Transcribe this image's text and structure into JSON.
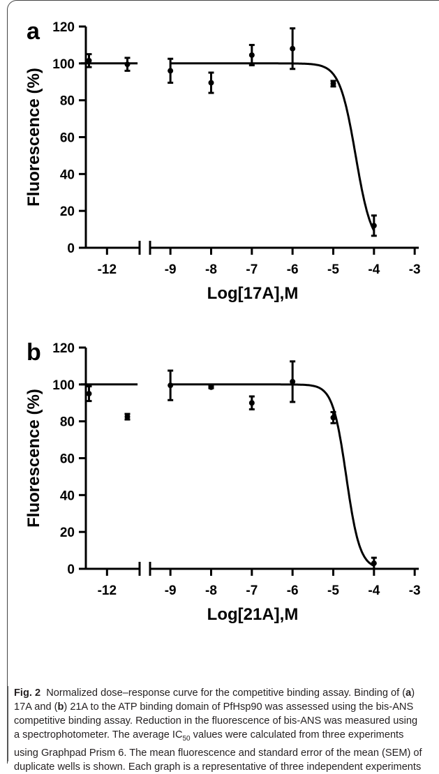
{
  "chart_data": [
    {
      "type": "scatter",
      "panel_label": "a",
      "xlabel": "Log[17A],M",
      "ylabel": "Fluorescence (%)",
      "xlim": [
        -12.6,
        -2.9
      ],
      "ylim": [
        0,
        120
      ],
      "x_axis_break": [
        -11.2,
        -9.5
      ],
      "xticks": [
        -12,
        -9,
        -8,
        -7,
        -6,
        -5,
        -4,
        -3
      ],
      "yticks": [
        0,
        20,
        40,
        60,
        80,
        100,
        120
      ],
      "fit_curve": {
        "top": 100,
        "bottom": 0,
        "log_ic50": -4.45,
        "hill_slope": -2.2
      },
      "points": [
        {
          "x": -11.5,
          "y": 99.5,
          "err": 3.5
        },
        {
          "x": -11.0,
          "y": 101.5,
          "err": 3.5
        },
        {
          "x": -9.0,
          "y": 96,
          "err": 6.5
        },
        {
          "x": -8.0,
          "y": 89.5,
          "err": 5.5
        },
        {
          "x": -7.0,
          "y": 104.5,
          "err": 5.5
        },
        {
          "x": -6.0,
          "y": 108,
          "err": 11
        },
        {
          "x": -5.0,
          "y": 89,
          "err": 1.5
        },
        {
          "x": -4.0,
          "y": 12,
          "err": 5.5
        }
      ]
    },
    {
      "type": "scatter",
      "panel_label": "b",
      "xlabel": "Log[21A],M",
      "ylabel": "Fluorescence (%)",
      "xlim": [
        -12.6,
        -2.9
      ],
      "ylim": [
        0,
        120
      ],
      "x_axis_break": [
        -11.2,
        -9.5
      ],
      "xticks": [
        -12,
        -9,
        -8,
        -7,
        -6,
        -5,
        -4,
        -3
      ],
      "yticks": [
        0,
        20,
        40,
        60,
        80,
        100,
        120
      ],
      "fit_curve": {
        "top": 100,
        "bottom": 0,
        "log_ic50": -4.68,
        "hill_slope": -2.6
      },
      "points": [
        {
          "x": -11.5,
          "y": 82.5,
          "err": 1.5
        },
        {
          "x": -11.0,
          "y": 95,
          "err": 4
        },
        {
          "x": -9.0,
          "y": 99.5,
          "err": 8
        },
        {
          "x": -8.0,
          "y": 98.5,
          "err": 0.5
        },
        {
          "x": -7.0,
          "y": 90,
          "err": 3.5
        },
        {
          "x": -6.0,
          "y": 101.5,
          "err": 11
        },
        {
          "x": -5.0,
          "y": 82,
          "err": 3
        },
        {
          "x": -4.0,
          "y": 3,
          "err": 3
        }
      ]
    }
  ],
  "caption": {
    "fig_label": "Fig. 2",
    "title": "Normalized dose–response curve for the competitive binding assay.",
    "text_1": "Binding of (",
    "a": "a",
    "text_2": ") 17A and (",
    "b": "b",
    "text_3": ") 21A to the ATP binding domain of PfHsp90 was assessed using the bis-ANS competitive binding assay. Reduction in the fluorescence of bis-ANS was measured using a spectrophotometer. The average IC",
    "sub": "50",
    "text_4": " values were calculated from three experiments using Graphpad Prism 6. The mean fluorescence and standard error of the mean (SEM) of duplicate wells is shown. Each graph is a representative of three independent experiments"
  }
}
